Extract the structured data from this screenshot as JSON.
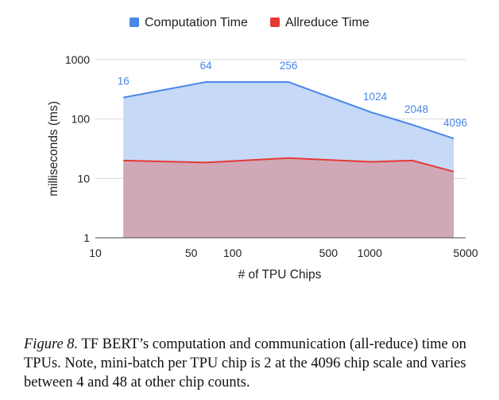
{
  "chart_data": {
    "type": "area",
    "x_scale": "log",
    "y_scale": "log",
    "x": [
      16,
      64,
      256,
      1024,
      2048,
      4096
    ],
    "series": [
      {
        "name": "Computation Time",
        "color": "#4a86e8",
        "fill": "#c6d9f6",
        "values": [
          230,
          420,
          420,
          130,
          80,
          47
        ]
      },
      {
        "name": "Allreduce Time",
        "color": "#e53935",
        "fill": "#d0a8b8",
        "values": [
          20,
          18.5,
          22,
          19,
          20,
          13
        ]
      }
    ],
    "data_labels": [
      "16",
      "64",
      "256",
      "1024",
      "2048",
      "4096"
    ],
    "xlabel": "# of TPU Chips",
    "ylabel": "milliseconds (ms)",
    "xticks": [
      10,
      50,
      100,
      500,
      1000,
      5000
    ],
    "xtick_labels": [
      "10",
      "50",
      "100",
      "500",
      "1000",
      "5000"
    ],
    "yticks": [
      1,
      10,
      100,
      1000
    ],
    "ytick_labels": [
      "1",
      "10",
      "100",
      "1000"
    ],
    "xlim": [
      10,
      5000
    ],
    "ylim": [
      1,
      1000
    ],
    "grid": "horizontal",
    "legend_position": "top-center"
  },
  "caption": {
    "figure_id": "Figure 8.",
    "text": " TF BERT’s computation and communication (all-reduce) time on TPUs.  Note, mini-batch per TPU chip is 2 at the 4096 chip scale and varies between 4 and 48 at other chip counts."
  }
}
